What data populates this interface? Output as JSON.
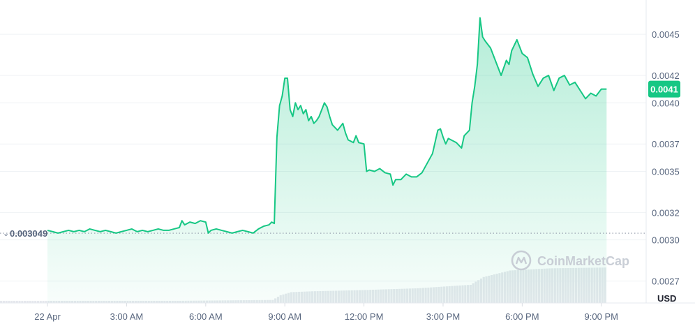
{
  "chart_data": {
    "type": "area",
    "unit": "USD",
    "yticks": [
      "0.0045",
      "0.0042",
      "0.0040",
      "0.0037",
      "0.0035",
      "0.0032",
      "0.0030",
      "0.0027"
    ],
    "ylim": [
      0.00254,
      0.00475
    ],
    "xticks": [
      "22 Apr",
      "3:00 AM",
      "6:00 AM",
      "9:00 AM",
      "12:00 PM",
      "3:00 PM",
      "6:00 PM",
      "9:00 PM"
    ],
    "xlim": [
      -1.8,
      22.7
    ],
    "start_price": 0.003049,
    "start_label": "0.003049",
    "current_price": 0.0041,
    "current_label": "0.0041",
    "line_color": "#16c784",
    "watermark": "CoinMarketCap",
    "series": [
      {
        "points": [
          [
            0.0,
            0.00307
          ],
          [
            0.2,
            0.00306
          ],
          [
            0.4,
            0.00305
          ],
          [
            0.6,
            0.00306
          ],
          [
            0.8,
            0.00307
          ],
          [
            1.0,
            0.00306
          ],
          [
            1.2,
            0.00307
          ],
          [
            1.4,
            0.00306
          ],
          [
            1.6,
            0.00308
          ],
          [
            1.8,
            0.00307
          ],
          [
            2.0,
            0.00306
          ],
          [
            2.2,
            0.00307
          ],
          [
            2.4,
            0.00306
          ],
          [
            2.6,
            0.00305
          ],
          [
            2.8,
            0.00306
          ],
          [
            3.0,
            0.00307
          ],
          [
            3.2,
            0.00308
          ],
          [
            3.4,
            0.00306
          ],
          [
            3.6,
            0.00307
          ],
          [
            3.8,
            0.00306
          ],
          [
            4.0,
            0.00307
          ],
          [
            4.2,
            0.00308
          ],
          [
            4.4,
            0.00307
          ],
          [
            4.6,
            0.00307
          ],
          [
            4.8,
            0.00308
          ],
          [
            5.0,
            0.00309
          ],
          [
            5.1,
            0.00314
          ],
          [
            5.2,
            0.00311
          ],
          [
            5.4,
            0.00313
          ],
          [
            5.6,
            0.00312
          ],
          [
            5.8,
            0.00314
          ],
          [
            6.0,
            0.00313
          ],
          [
            6.1,
            0.00305
          ],
          [
            6.2,
            0.00307
          ],
          [
            6.4,
            0.00308
          ],
          [
            6.6,
            0.00307
          ],
          [
            6.8,
            0.00306
          ],
          [
            7.0,
            0.00305
          ],
          [
            7.2,
            0.00306
          ],
          [
            7.4,
            0.00307
          ],
          [
            7.6,
            0.00306
          ],
          [
            7.8,
            0.00305
          ],
          [
            8.0,
            0.00308
          ],
          [
            8.2,
            0.0031
          ],
          [
            8.4,
            0.00311
          ],
          [
            8.5,
            0.00313
          ],
          [
            8.6,
            0.00312
          ],
          [
            8.7,
            0.00375
          ],
          [
            8.8,
            0.00398
          ],
          [
            8.9,
            0.00405
          ],
          [
            9.0,
            0.00418
          ],
          [
            9.1,
            0.00418
          ],
          [
            9.2,
            0.00395
          ],
          [
            9.3,
            0.0039
          ],
          [
            9.4,
            0.004
          ],
          [
            9.5,
            0.00395
          ],
          [
            9.6,
            0.00398
          ],
          [
            9.7,
            0.00392
          ],
          [
            9.8,
            0.00395
          ],
          [
            9.9,
            0.00387
          ],
          [
            10.0,
            0.0039
          ],
          [
            10.1,
            0.00385
          ],
          [
            10.2,
            0.00387
          ],
          [
            10.3,
            0.0039
          ],
          [
            10.4,
            0.00395
          ],
          [
            10.5,
            0.004
          ],
          [
            10.6,
            0.00397
          ],
          [
            10.7,
            0.0039
          ],
          [
            10.8,
            0.00384
          ],
          [
            11.0,
            0.0038
          ],
          [
            11.2,
            0.00385
          ],
          [
            11.3,
            0.00378
          ],
          [
            11.4,
            0.00373
          ],
          [
            11.6,
            0.00371
          ],
          [
            11.7,
            0.00376
          ],
          [
            11.8,
            0.00371
          ],
          [
            12.0,
            0.0037
          ],
          [
            12.1,
            0.0035
          ],
          [
            12.2,
            0.00351
          ],
          [
            12.4,
            0.0035
          ],
          [
            12.6,
            0.00352
          ],
          [
            12.8,
            0.00349
          ],
          [
            13.0,
            0.00348
          ],
          [
            13.1,
            0.0034
          ],
          [
            13.2,
            0.00344
          ],
          [
            13.4,
            0.00344
          ],
          [
            13.6,
            0.00348
          ],
          [
            13.8,
            0.00346
          ],
          [
            14.0,
            0.00346
          ],
          [
            14.2,
            0.00349
          ],
          [
            14.4,
            0.00356
          ],
          [
            14.6,
            0.00363
          ],
          [
            14.8,
            0.0038
          ],
          [
            14.9,
            0.00381
          ],
          [
            15.0,
            0.00375
          ],
          [
            15.1,
            0.0037
          ],
          [
            15.2,
            0.00374
          ],
          [
            15.4,
            0.00372
          ],
          [
            15.5,
            0.00371
          ],
          [
            15.7,
            0.00367
          ],
          [
            15.8,
            0.00376
          ],
          [
            16.0,
            0.0038
          ],
          [
            16.1,
            0.004
          ],
          [
            16.2,
            0.00412
          ],
          [
            16.3,
            0.00428
          ],
          [
            16.4,
            0.00462
          ],
          [
            16.5,
            0.00448
          ],
          [
            16.6,
            0.00445
          ],
          [
            16.8,
            0.0044
          ],
          [
            17.0,
            0.0043
          ],
          [
            17.2,
            0.0042
          ],
          [
            17.4,
            0.00431
          ],
          [
            17.5,
            0.00428
          ],
          [
            17.6,
            0.00438
          ],
          [
            17.8,
            0.00446
          ],
          [
            18.0,
            0.00436
          ],
          [
            18.2,
            0.00433
          ],
          [
            18.4,
            0.00421
          ],
          [
            18.6,
            0.00412
          ],
          [
            18.8,
            0.00418
          ],
          [
            19.0,
            0.0042
          ],
          [
            19.2,
            0.00409
          ],
          [
            19.4,
            0.00418
          ],
          [
            19.6,
            0.0042
          ],
          [
            19.8,
            0.00413
          ],
          [
            20.0,
            0.00415
          ],
          [
            20.2,
            0.00409
          ],
          [
            20.4,
            0.00403
          ],
          [
            20.6,
            0.00407
          ],
          [
            20.8,
            0.00405
          ],
          [
            21.0,
            0.0041
          ],
          [
            21.2,
            0.0041
          ]
        ]
      }
    ],
    "volume": [
      [
        0.0,
        0.05
      ],
      [
        5.0,
        0.05
      ],
      [
        8.5,
        0.07
      ],
      [
        8.8,
        0.18
      ],
      [
        9.2,
        0.25
      ],
      [
        10.0,
        0.27
      ],
      [
        12.0,
        0.3
      ],
      [
        14.0,
        0.34
      ],
      [
        16.0,
        0.42
      ],
      [
        16.5,
        0.6
      ],
      [
        17.5,
        0.75
      ],
      [
        19.0,
        0.8
      ],
      [
        21.2,
        0.82
      ]
    ]
  }
}
